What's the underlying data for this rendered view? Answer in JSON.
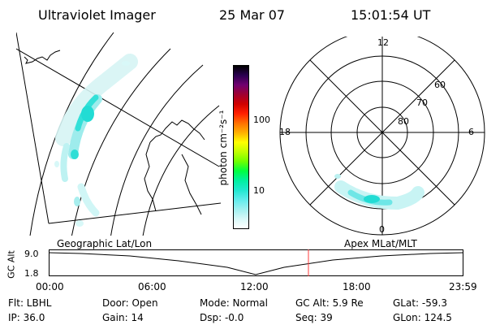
{
  "header": {
    "instrument": "Ultraviolet Imager",
    "date": "25 Mar 07",
    "time": "15:01:54 UT"
  },
  "colorbar": {
    "unit_label": "photon cm⁻²s⁻¹",
    "ticks": [
      "100",
      "10"
    ],
    "colors": [
      "#000000",
      "#2a0050",
      "#700070",
      "#a00030",
      "#d00000",
      "#ff2000",
      "#ff7000",
      "#ffb000",
      "#ffff00",
      "#c0ff00",
      "#70ff00",
      "#00ff40",
      "#00f0a0",
      "#20e8d0",
      "#60ecec",
      "#a0f0f0",
      "#d8f8f8",
      "#ffffff"
    ]
  },
  "geo_panel": {
    "label": "Geographic Lat/Lon"
  },
  "polar_panel": {
    "label": "Apex MLat/MLT",
    "mlt_labels": {
      "top": "12",
      "left": "18",
      "right": "6",
      "bottom": "0"
    },
    "lat_labels": [
      "60",
      "70",
      "80"
    ]
  },
  "altitude_plot": {
    "ylabel": "GC Alt",
    "yticks": [
      "9.0",
      "1.8"
    ],
    "xticks": [
      "00:00",
      "06:00",
      "12:00",
      "18:00",
      "23:59"
    ],
    "marker_time": "15:01",
    "marker_color": "#ff3b3b"
  },
  "info": {
    "flt": "Flt: LBHL",
    "ip": "IP: 36.0",
    "door": "Door: Open",
    "gain": "Gain: 14",
    "mode": "Mode: Normal",
    "dsp": "Dsp:  -0.0",
    "gc_alt": "GC Alt: 5.9 Re",
    "seq": "Seq: 39",
    "glat": "GLat: -59.3",
    "glon": "GLon: 124.5"
  }
}
